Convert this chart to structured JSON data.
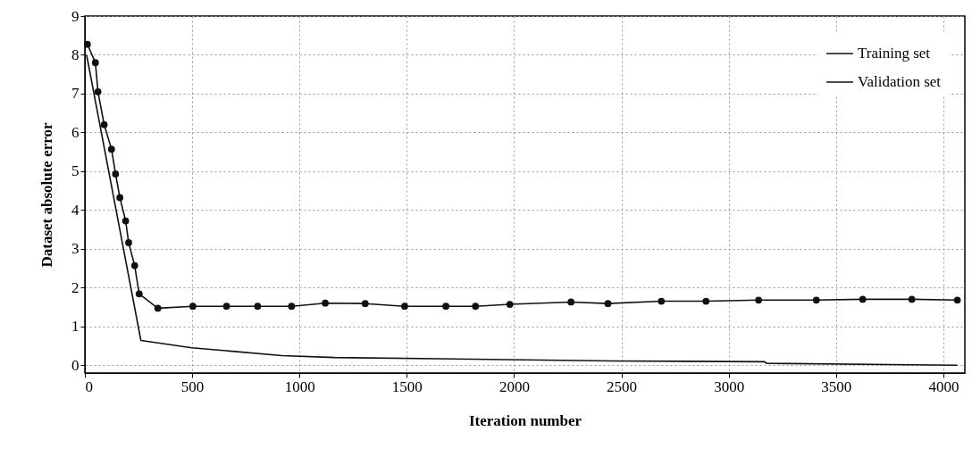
{
  "chart_data": {
    "type": "line",
    "xlabel": "Iteration number",
    "ylabel": "Dataset absolute error",
    "xlim": [
      0,
      4100
    ],
    "ylim": [
      -0.2,
      9
    ],
    "xticks": [
      0,
      500,
      1000,
      1500,
      2000,
      2500,
      3000,
      3500,
      4000
    ],
    "yticks": [
      0,
      1,
      2,
      3,
      4,
      5,
      6,
      7,
      8,
      9
    ],
    "line_style": "solid",
    "grid": true,
    "legend": "top right",
    "series": [
      {
        "name": "Training set",
        "color": "#111111",
        "marker": "circle",
        "x": [
          12,
          49,
          61,
          90,
          124,
          143,
          163,
          190,
          204,
          232,
          253,
          340,
          503,
          660,
          805,
          963,
          1120,
          1306,
          1490,
          1682,
          1820,
          1980,
          2265,
          2437,
          2686,
          2894,
          3139,
          3408,
          3624,
          3853,
          4065
        ],
        "values": [
          8.27,
          7.8,
          7.05,
          6.2,
          5.57,
          4.93,
          4.32,
          3.72,
          3.16,
          2.57,
          1.84,
          1.47,
          1.52,
          1.52,
          1.52,
          1.52,
          1.6,
          1.59,
          1.52,
          1.52,
          1.52,
          1.57,
          1.63,
          1.59,
          1.65,
          1.65,
          1.68,
          1.68,
          1.7,
          1.7,
          1.68
        ]
      },
      {
        "name": "Validation set",
        "color": "#111111",
        "marker": "none",
        "x": [
          8,
          261,
          498,
          918,
          1163,
          2461,
          3167,
          3176,
          4065
        ],
        "values": [
          8.0,
          0.64,
          0.45,
          0.25,
          0.2,
          0.11,
          0.09,
          0.05,
          0.0
        ]
      }
    ]
  }
}
